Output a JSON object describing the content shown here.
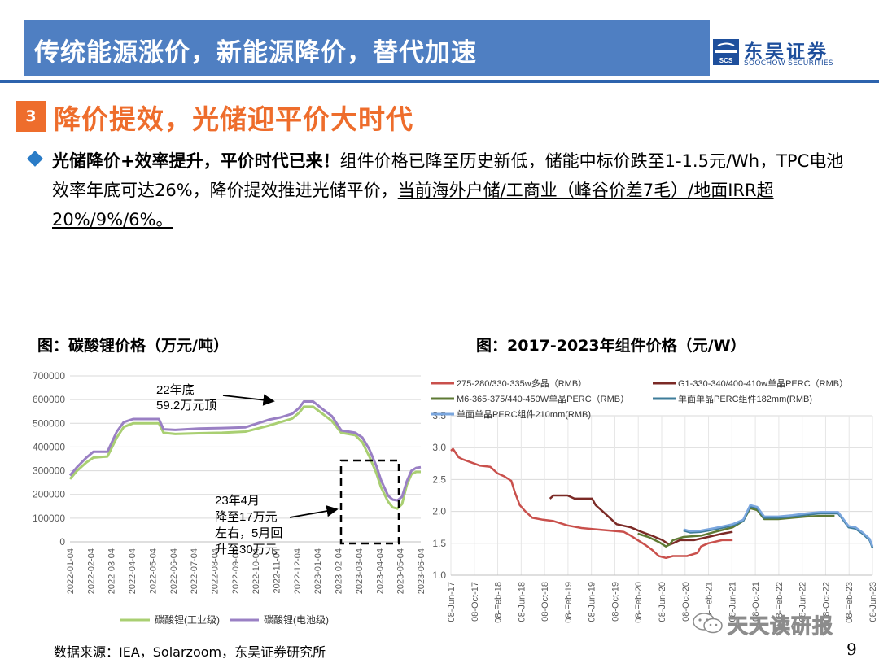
{
  "header": {
    "title": "传统能源涨价，新能源降价，替代加速",
    "logo_cn": "东吴证券",
    "logo_en": "SOOCHOW SECURITIES",
    "logo_mark_text": "SCS"
  },
  "section": {
    "number": "3",
    "title": "降价提效，光储迎平价大时代"
  },
  "body": {
    "bold_lead": "光储降价+效率提升，平价时代已来！",
    "text_plain": "组件价格已降至历史新低，储能中标价跌至1-1.5元/Wh，TPC电池效率年底可达26%，降价提效推进光储平价，",
    "text_underline": "当前海外户储/工商业（峰谷价差7毛）/地面IRR超20%/9%/6%。"
  },
  "colors": {
    "title_bar": "#4f7fc2",
    "accent_orange": "#ee6d2c",
    "bullet_blue": "#2a7cc7",
    "lithium_industrial": "#a9cf72",
    "lithium_battery": "#9a80c4",
    "poly_275": "#c9504c",
    "g1_330": "#7b2a26",
    "m6_365": "#5e7a34",
    "mono_182": "#3e7c9a",
    "mono_210": "#7aa6de"
  },
  "chart_data": [
    {
      "type": "line",
      "caption": "图：碳酸锂价格（万元/吨）",
      "x_ticks": [
        "2022-01-04",
        "2022-02-04",
        "2022-03-04",
        "2022-04-04",
        "2022-05-04",
        "2022-06-04",
        "2022-07-04",
        "2022-08-04",
        "2022-09-04",
        "2022-10-04",
        "2022-11-04",
        "2022-12-04",
        "2023-01-04",
        "2023-02-04",
        "2023-03-04",
        "2023-04-04",
        "2023-05-04",
        "2023-06-04"
      ],
      "y_ticks": [
        "0",
        "100000",
        "200000",
        "300000",
        "400000",
        "500000",
        "600000",
        "700000"
      ],
      "ylim": [
        0,
        700000
      ],
      "x_range": [
        2022.0,
        2023.5
      ],
      "series": [
        {
          "name": "碳酸锂(工业级)",
          "color": "lithium_industrial",
          "points": [
            [
              2022.0,
              265000
            ],
            [
              2022.03,
              300000
            ],
            [
              2022.07,
              335000
            ],
            [
              2022.1,
              355000
            ],
            [
              2022.16,
              360000
            ],
            [
              2022.2,
              440000
            ],
            [
              2022.23,
              485000
            ],
            [
              2022.27,
              500000
            ],
            [
              2022.3,
              500000
            ],
            [
              2022.38,
              500000
            ],
            [
              2022.4,
              460000
            ],
            [
              2022.45,
              455000
            ],
            [
              2022.55,
              458000
            ],
            [
              2022.65,
              460000
            ],
            [
              2022.75,
              465000
            ],
            [
              2022.85,
              490000
            ],
            [
              2022.9,
              505000
            ],
            [
              2022.95,
              520000
            ],
            [
              2022.98,
              545000
            ],
            [
              2023.0,
              570000
            ],
            [
              2023.04,
              570000
            ],
            [
              2023.08,
              540000
            ],
            [
              2023.12,
              510000
            ],
            [
              2023.16,
              460000
            ],
            [
              2023.22,
              450000
            ],
            [
              2023.25,
              420000
            ],
            [
              2023.28,
              360000
            ],
            [
              2023.31,
              290000
            ],
            [
              2023.33,
              230000
            ],
            [
              2023.36,
              170000
            ],
            [
              2023.38,
              145000
            ],
            [
              2023.4,
              140000
            ],
            [
              2023.42,
              160000
            ],
            [
              2023.44,
              240000
            ],
            [
              2023.46,
              285000
            ],
            [
              2023.48,
              295000
            ],
            [
              2023.5,
              295000
            ]
          ]
        },
        {
          "name": "碳酸锂(电池级)",
          "color": "lithium_battery",
          "points": [
            [
              2022.0,
              280000
            ],
            [
              2022.03,
              315000
            ],
            [
              2022.07,
              355000
            ],
            [
              2022.1,
              380000
            ],
            [
              2022.16,
              380000
            ],
            [
              2022.2,
              465000
            ],
            [
              2022.23,
              505000
            ],
            [
              2022.27,
              518000
            ],
            [
              2022.3,
              518000
            ],
            [
              2022.38,
              518000
            ],
            [
              2022.4,
              475000
            ],
            [
              2022.45,
              472000
            ],
            [
              2022.55,
              478000
            ],
            [
              2022.65,
              480000
            ],
            [
              2022.75,
              483000
            ],
            [
              2022.85,
              515000
            ],
            [
              2022.9,
              525000
            ],
            [
              2022.95,
              540000
            ],
            [
              2022.98,
              565000
            ],
            [
              2023.0,
              592000
            ],
            [
              2023.04,
              592000
            ],
            [
              2023.08,
              560000
            ],
            [
              2023.12,
              530000
            ],
            [
              2023.16,
              470000
            ],
            [
              2023.22,
              460000
            ],
            [
              2023.25,
              440000
            ],
            [
              2023.28,
              390000
            ],
            [
              2023.31,
              320000
            ],
            [
              2023.33,
              260000
            ],
            [
              2023.36,
              195000
            ],
            [
              2023.38,
              178000
            ],
            [
              2023.4,
              175000
            ],
            [
              2023.42,
              190000
            ],
            [
              2023.44,
              255000
            ],
            [
              2023.46,
              300000
            ],
            [
              2023.48,
              312000
            ],
            [
              2023.5,
              315000
            ]
          ]
        }
      ],
      "annotations": [
        {
          "text_lines": [
            "22年底",
            "59.2万元顶"
          ]
        },
        {
          "text_lines": [
            "23年4月",
            "降至17万元",
            "左右，5月回",
            "升至30万元"
          ]
        }
      ],
      "legend": [
        "碳酸锂(工业级)",
        "碳酸锂(电池级)"
      ],
      "legend_position": "bottom"
    },
    {
      "type": "line",
      "caption": "图：2017-2023年组件价格（元/W）",
      "x_ticks": [
        "08-Jun-17",
        "08-Oct-17",
        "08-Feb-18",
        "08-Jun-18",
        "08-Oct-18",
        "08-Feb-19",
        "08-Jun-19",
        "08-Oct-19",
        "08-Feb-20",
        "08-Jun-20",
        "08-Oct-20",
        "08-Feb-21",
        "08-Jun-21",
        "08-Oct-21",
        "08-Feb-22",
        "08-Jun-22",
        "08-Oct-22",
        "08-Feb-23",
        "08-Jun-23"
      ],
      "y_ticks": [
        "1.0",
        "1.5",
        "2.0",
        "2.5",
        "3.0",
        "3.5"
      ],
      "ylim": [
        1.0,
        3.5
      ],
      "x_range": [
        2017.44,
        2023.44
      ],
      "series": [
        {
          "name": "275-280/330-335w多晶（RMB）",
          "color": "poly_275",
          "points": [
            [
              2017.44,
              2.95
            ],
            [
              2017.47,
              2.98
            ],
            [
              2017.55,
              2.85
            ],
            [
              2017.6,
              2.82
            ],
            [
              2017.7,
              2.78
            ],
            [
              2017.85,
              2.72
            ],
            [
              2018.0,
              2.7
            ],
            [
              2018.1,
              2.6
            ],
            [
              2018.2,
              2.55
            ],
            [
              2018.3,
              2.48
            ],
            [
              2018.35,
              2.3
            ],
            [
              2018.42,
              2.1
            ],
            [
              2018.5,
              2.0
            ],
            [
              2018.6,
              1.9
            ],
            [
              2018.75,
              1.87
            ],
            [
              2018.9,
              1.85
            ],
            [
              2019.1,
              1.78
            ],
            [
              2019.3,
              1.74
            ],
            [
              2019.5,
              1.72
            ],
            [
              2019.7,
              1.7
            ],
            [
              2019.9,
              1.68
            ],
            [
              2020.0,
              1.62
            ],
            [
              2020.1,
              1.55
            ],
            [
              2020.2,
              1.48
            ],
            [
              2020.3,
              1.4
            ],
            [
              2020.4,
              1.3
            ],
            [
              2020.5,
              1.27
            ],
            [
              2020.6,
              1.3
            ],
            [
              2020.8,
              1.3
            ],
            [
              2020.95,
              1.35
            ],
            [
              2021.0,
              1.45
            ],
            [
              2021.1,
              1.5
            ],
            [
              2021.3,
              1.55
            ],
            [
              2021.45,
              1.55
            ]
          ]
        },
        {
          "name": "G1-330-340/400-410w单晶PERC（RMB）",
          "color": "g1_330",
          "points": [
            [
              2018.85,
              2.2
            ],
            [
              2018.9,
              2.25
            ],
            [
              2019.1,
              2.25
            ],
            [
              2019.2,
              2.2
            ],
            [
              2019.45,
              2.2
            ],
            [
              2019.5,
              2.1
            ],
            [
              2019.6,
              2.0
            ],
            [
              2019.7,
              1.9
            ],
            [
              2019.8,
              1.8
            ],
            [
              2020.0,
              1.75
            ],
            [
              2020.15,
              1.68
            ],
            [
              2020.3,
              1.62
            ],
            [
              2020.45,
              1.55
            ],
            [
              2020.55,
              1.48
            ],
            [
              2020.6,
              1.5
            ],
            [
              2020.7,
              1.55
            ],
            [
              2020.9,
              1.55
            ],
            [
              2021.1,
              1.6
            ],
            [
              2021.3,
              1.65
            ],
            [
              2021.45,
              1.68
            ]
          ]
        },
        {
          "name": "M6-365-375/440-450W单晶PERC（RMB）",
          "color": "m6_365",
          "points": [
            [
              2020.1,
              1.65
            ],
            [
              2020.25,
              1.6
            ],
            [
              2020.4,
              1.52
            ],
            [
              2020.5,
              1.45
            ],
            [
              2020.55,
              1.48
            ],
            [
              2020.6,
              1.55
            ],
            [
              2020.75,
              1.6
            ],
            [
              2021.0,
              1.62
            ],
            [
              2021.2,
              1.68
            ],
            [
              2021.45,
              1.75
            ],
            [
              2021.6,
              1.85
            ],
            [
              2021.7,
              2.05
            ],
            [
              2021.8,
              2.02
            ],
            [
              2021.9,
              1.88
            ],
            [
              2022.1,
              1.88
            ],
            [
              2022.3,
              1.9
            ],
            [
              2022.5,
              1.92
            ],
            [
              2022.7,
              1.93
            ],
            [
              2022.9,
              1.93
            ]
          ]
        },
        {
          "name": "单面单晶PERC组件182mm(RMB)",
          "color": "mono_182",
          "points": [
            [
              2020.75,
              1.7
            ],
            [
              2020.85,
              1.67
            ],
            [
              2021.0,
              1.68
            ],
            [
              2021.2,
              1.72
            ],
            [
              2021.45,
              1.78
            ],
            [
              2021.6,
              1.85
            ],
            [
              2021.7,
              2.08
            ],
            [
              2021.8,
              2.05
            ],
            [
              2021.9,
              1.9
            ],
            [
              2022.1,
              1.9
            ],
            [
              2022.3,
              1.92
            ],
            [
              2022.5,
              1.95
            ],
            [
              2022.7,
              1.97
            ],
            [
              2022.95,
              1.97
            ],
            [
              2023.0,
              1.9
            ],
            [
              2023.1,
              1.75
            ],
            [
              2023.2,
              1.73
            ],
            [
              2023.3,
              1.65
            ],
            [
              2023.4,
              1.55
            ],
            [
              2023.44,
              1.43
            ]
          ]
        },
        {
          "name": "单面单晶PERC组件210mm(RMB)",
          "color": "mono_210",
          "points": [
            [
              2020.75,
              1.72
            ],
            [
              2020.85,
              1.69
            ],
            [
              2021.0,
              1.7
            ],
            [
              2021.2,
              1.74
            ],
            [
              2021.45,
              1.8
            ],
            [
              2021.6,
              1.87
            ],
            [
              2021.7,
              2.1
            ],
            [
              2021.8,
              2.07
            ],
            [
              2021.9,
              1.92
            ],
            [
              2022.1,
              1.92
            ],
            [
              2022.3,
              1.94
            ],
            [
              2022.5,
              1.97
            ],
            [
              2022.7,
              1.99
            ],
            [
              2022.95,
              1.99
            ],
            [
              2023.0,
              1.92
            ],
            [
              2023.1,
              1.77
            ],
            [
              2023.2,
              1.75
            ],
            [
              2023.3,
              1.67
            ],
            [
              2023.4,
              1.57
            ],
            [
              2023.44,
              1.45
            ]
          ]
        }
      ],
      "legend": [
        "275-280/330-335w多晶（RMB）",
        "G1-330-340/400-410w单晶PERC（RMB）",
        "M6-365-375/440-450W单晶PERC（RMB）",
        "单面单晶PERC组件182mm(RMB)",
        "单面单晶PERC组件210mm(RMB)"
      ],
      "legend_position": "top"
    }
  ],
  "footer": {
    "source": "数据来源：IEA，Solarzoom，东吴证券研究所",
    "page_number": "9",
    "watermark": "天天读研报",
    "watermark_icon": "wechat-icon"
  }
}
